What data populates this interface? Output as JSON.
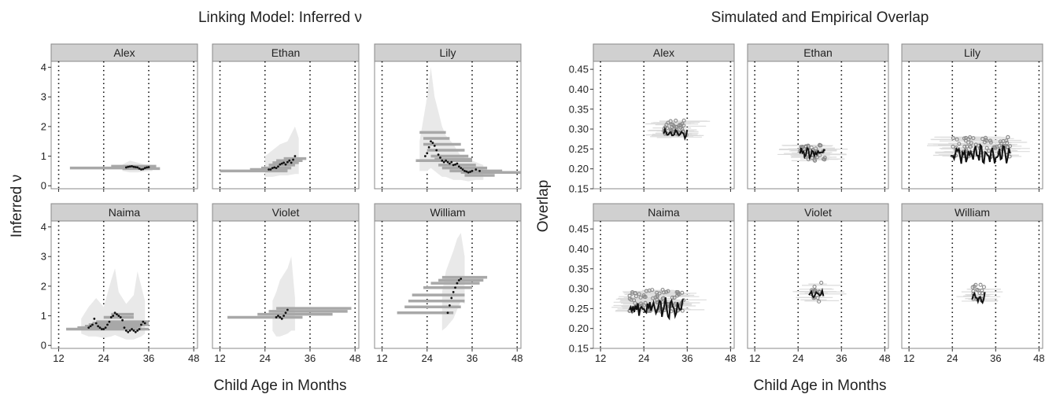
{
  "chart_data": [
    {
      "type": "line",
      "title": "Linking Model: Inferred ν",
      "xlabel": "Child Age in Months",
      "ylabel": "Inferred ν",
      "xlim": [
        10,
        49
      ],
      "ylim": [
        -0.1,
        4.2
      ],
      "xticks": [
        "12",
        "24",
        "36",
        "48"
      ],
      "yticks": [
        "0",
        "1",
        "2",
        "3",
        "4"
      ],
      "reference_lines_x": [
        12,
        24,
        36,
        48
      ],
      "colors": {
        "points": "#111111",
        "intervals": "#a8a8a8",
        "band": "#e9e9e9",
        "strip": "#d0d0d0"
      },
      "panels": [
        {
          "name": "Alex",
          "x": [
            30.0,
            30.5,
            31.0,
            31.5,
            32.0,
            32.5,
            33.0,
            33.5,
            34.0,
            34.5,
            35.0,
            35.5,
            36.0
          ],
          "y": [
            0.62,
            0.64,
            0.65,
            0.66,
            0.64,
            0.63,
            0.62,
            0.58,
            0.55,
            0.56,
            0.6,
            0.62,
            0.63
          ],
          "intervals": [
            [
              15,
              36,
              0.6
            ],
            [
              26,
              38,
              0.66
            ],
            [
              28,
              37,
              0.62
            ],
            [
              29,
              39,
              0.58
            ]
          ],
          "band": [
            [
              29,
              0.5,
              0.72
            ],
            [
              31,
              0.45,
              0.85
            ],
            [
              33,
              0.45,
              0.78
            ],
            [
              35,
              0.48,
              0.72
            ],
            [
              37,
              0.5,
              0.7
            ]
          ]
        },
        {
          "name": "Ethan",
          "x": [
            25.0,
            25.5,
            26.0,
            26.5,
            27.0,
            27.5,
            28.0,
            28.5,
            29.0,
            29.5,
            30.0,
            30.5,
            31.0,
            31.5,
            32.0
          ],
          "y": [
            0.55,
            0.55,
            0.6,
            0.62,
            0.6,
            0.65,
            0.72,
            0.75,
            0.78,
            0.72,
            0.8,
            0.85,
            0.78,
            0.88,
            1.0
          ],
          "intervals": [
            [
              12,
              30,
              0.5
            ],
            [
              20,
              30,
              0.55
            ],
            [
              23,
              31,
              0.6
            ],
            [
              25,
              32,
              0.7
            ],
            [
              26,
              33,
              0.78
            ],
            [
              27,
              34,
              0.85
            ],
            [
              29,
              35,
              0.92
            ]
          ],
          "band": [
            [
              24,
              0.3,
              1.0
            ],
            [
              26,
              0.3,
              1.2
            ],
            [
              28,
              0.35,
              1.4
            ],
            [
              30,
              0.35,
              1.5
            ],
            [
              32,
              0.4,
              2.0
            ],
            [
              33,
              0.4,
              1.6
            ]
          ]
        },
        {
          "name": "Lily",
          "x": [
            23.5,
            24.0,
            24.5,
            25.0,
            25.5,
            26.0,
            26.5,
            27.0,
            27.5,
            28.0,
            28.5,
            29.0,
            29.5,
            30.0,
            30.5,
            31.0,
            31.5,
            32.0,
            32.5,
            33.0,
            33.5,
            34.0,
            34.5,
            35.0,
            35.5,
            36.0,
            37.0,
            38.0
          ],
          "y": [
            1.0,
            1.1,
            1.3,
            1.5,
            1.45,
            1.35,
            1.2,
            1.05,
            0.95,
            0.85,
            0.8,
            0.85,
            0.8,
            0.75,
            0.8,
            0.7,
            0.72,
            0.75,
            0.65,
            0.6,
            0.55,
            0.5,
            0.48,
            0.45,
            0.47,
            0.5,
            0.55,
            0.5
          ],
          "intervals": [
            [
              21,
              36,
              0.85
            ],
            [
              22,
              29,
              1.8
            ],
            [
              23,
              30,
              1.6
            ],
            [
              23,
              33,
              1.4
            ],
            [
              24,
              34,
              1.2
            ],
            [
              25,
              35,
              1.0
            ],
            [
              26,
              36,
              0.9
            ],
            [
              27,
              37,
              0.7
            ],
            [
              28,
              40,
              0.6
            ],
            [
              30,
              44,
              0.5
            ],
            [
              33,
              49,
              0.45
            ],
            [
              34,
              42,
              0.35
            ]
          ],
          "band": [
            [
              22,
              0.5,
              1.5
            ],
            [
              24,
              0.5,
              3.0
            ],
            [
              25,
              0.6,
              4.0
            ],
            [
              26,
              0.5,
              3.0
            ],
            [
              27,
              0.4,
              2.5
            ],
            [
              28,
              0.3,
              2.0
            ],
            [
              29,
              0.3,
              1.7
            ],
            [
              31,
              0.2,
              1.4
            ],
            [
              33,
              0.2,
              1.0
            ],
            [
              35,
              0.15,
              0.9
            ],
            [
              37,
              0.2,
              0.8
            ],
            [
              39,
              0.2,
              0.7
            ]
          ]
        },
        {
          "name": "Naima",
          "x": [
            20.0,
            20.5,
            21.0,
            21.5,
            22.0,
            22.5,
            23.0,
            23.5,
            24.0,
            24.5,
            25.0,
            25.5,
            26.0,
            26.5,
            27.0,
            27.5,
            28.0,
            28.5,
            29.0,
            29.5,
            30.0,
            30.5,
            31.0,
            31.5,
            32.0,
            32.5,
            33.0,
            33.5,
            34.0,
            34.5,
            35.0
          ],
          "y": [
            0.6,
            0.65,
            0.7,
            0.9,
            0.75,
            0.65,
            0.6,
            0.55,
            0.55,
            0.6,
            0.7,
            0.8,
            0.95,
            1.0,
            1.1,
            1.05,
            1.0,
            0.95,
            0.85,
            0.6,
            0.5,
            0.45,
            0.5,
            0.55,
            0.5,
            0.45,
            0.5,
            0.55,
            0.7,
            0.8,
            0.75
          ],
          "intervals": [
            [
              14,
              36,
              0.55
            ],
            [
              17,
              33,
              0.6
            ],
            [
              19,
              34,
              0.65
            ],
            [
              20,
              35,
              0.7
            ],
            [
              21,
              35,
              0.75
            ],
            [
              22,
              36,
              0.8
            ],
            [
              23,
              36,
              0.7
            ],
            [
              24,
              32,
              0.95
            ],
            [
              26,
              32,
              1.05
            ]
          ],
          "band": [
            [
              18,
              0.4,
              0.9
            ],
            [
              20,
              0.3,
              1.3
            ],
            [
              22,
              0.3,
              1.6
            ],
            [
              24,
              0.25,
              1.3
            ],
            [
              26,
              0.3,
              2.2
            ],
            [
              27,
              0.35,
              2.6
            ],
            [
              28,
              0.3,
              1.8
            ],
            [
              30,
              0.2,
              1.4
            ],
            [
              32,
              0.2,
              1.7
            ],
            [
              33,
              0.25,
              2.5
            ],
            [
              34,
              0.3,
              2.0
            ],
            [
              35,
              0.4,
              1.5
            ]
          ]
        },
        {
          "name": "Violet",
          "x": [
            27.0,
            27.5,
            28.0,
            28.5,
            29.0,
            29.5,
            30.0
          ],
          "y": [
            0.95,
            1.0,
            0.95,
            0.9,
            1.0,
            1.1,
            1.2
          ],
          "intervals": [
            [
              14,
              34,
              0.95
            ],
            [
              22,
              42,
              1.05
            ],
            [
              25,
              46,
              1.15
            ],
            [
              27,
              47,
              1.25
            ]
          ],
          "band": [
            [
              26,
              0.5,
              1.5
            ],
            [
              27,
              0.3,
              1.8
            ],
            [
              28,
              0.3,
              2.2
            ],
            [
              30,
              0.4,
              2.6
            ],
            [
              31,
              0.5,
              3.0
            ],
            [
              32,
              0.5,
              1.6
            ]
          ]
        },
        {
          "name": "William",
          "x": [
            29.5,
            30.0,
            30.5,
            31.0,
            31.5,
            32.0,
            32.5,
            33.0
          ],
          "y": [
            1.1,
            1.35,
            1.6,
            1.8,
            1.95,
            2.1,
            2.2,
            2.25
          ],
          "intervals": [
            [
              16,
              31,
              1.1
            ],
            [
              18,
              33,
              1.3
            ],
            [
              19,
              34,
              1.5
            ],
            [
              20,
              34,
              1.7
            ],
            [
              23,
              36,
              1.95
            ],
            [
              25,
              38,
              2.1
            ],
            [
              27,
              39,
              2.2
            ],
            [
              28,
              40,
              2.3
            ]
          ],
          "band": [
            [
              28,
              0.5,
              1.8
            ],
            [
              29,
              0.6,
              2.5
            ],
            [
              31,
              0.9,
              3.2
            ],
            [
              32,
              1.2,
              3.6
            ],
            [
              33,
              1.5,
              3.8
            ],
            [
              34,
              1.4,
              3.0
            ]
          ]
        }
      ]
    },
    {
      "type": "line",
      "title": "Simulated and Empirical Overlap",
      "xlabel": "Child Age in Months",
      "ylabel": "Overlap",
      "xlim": [
        10,
        49
      ],
      "ylim": [
        0.15,
        0.47
      ],
      "xticks": [
        "12",
        "24",
        "36",
        "48"
      ],
      "yticks": [
        "0.15",
        "0.20",
        "0.25",
        "0.30",
        "0.35",
        "0.40",
        "0.45"
      ],
      "reference_lines_x": [
        12,
        24,
        36,
        48
      ],
      "colors": {
        "simulated_line": "#111111",
        "empirical_points": "#8a8a8a",
        "intervals": "#dcdcdc",
        "strip": "#d0d0d0"
      },
      "panels": [
        {
          "name": "Alex",
          "range": [
            29.5,
            36.0
          ],
          "line_center": 0.29,
          "line_amp": 0.012,
          "point_center": 0.3,
          "point_spread": 0.022,
          "n_points": 40
        },
        {
          "name": "Ethan",
          "range": [
            24.5,
            31.5
          ],
          "line_center": 0.24,
          "line_amp": 0.012,
          "point_center": 0.24,
          "point_spread": 0.02,
          "n_points": 36
        },
        {
          "name": "Lily",
          "range": [
            23.5,
            40.0
          ],
          "line_center": 0.235,
          "line_amp": 0.022,
          "point_center": 0.255,
          "point_spread": 0.025,
          "n_points": 70
        },
        {
          "name": "Naima",
          "range": [
            20.0,
            35.0
          ],
          "line_center": 0.25,
          "line_amp": 0.025,
          "point_center": 0.27,
          "point_spread": 0.028,
          "n_points": 90
        },
        {
          "name": "Violet",
          "range": [
            27.0,
            31.0
          ],
          "line_center": 0.285,
          "line_amp": 0.008,
          "point_center": 0.29,
          "point_spread": 0.025,
          "n_points": 14
        },
        {
          "name": "William",
          "range": [
            29.5,
            33.0
          ],
          "line_center": 0.275,
          "line_amp": 0.015,
          "point_center": 0.29,
          "point_spread": 0.022,
          "n_points": 16
        }
      ]
    }
  ]
}
